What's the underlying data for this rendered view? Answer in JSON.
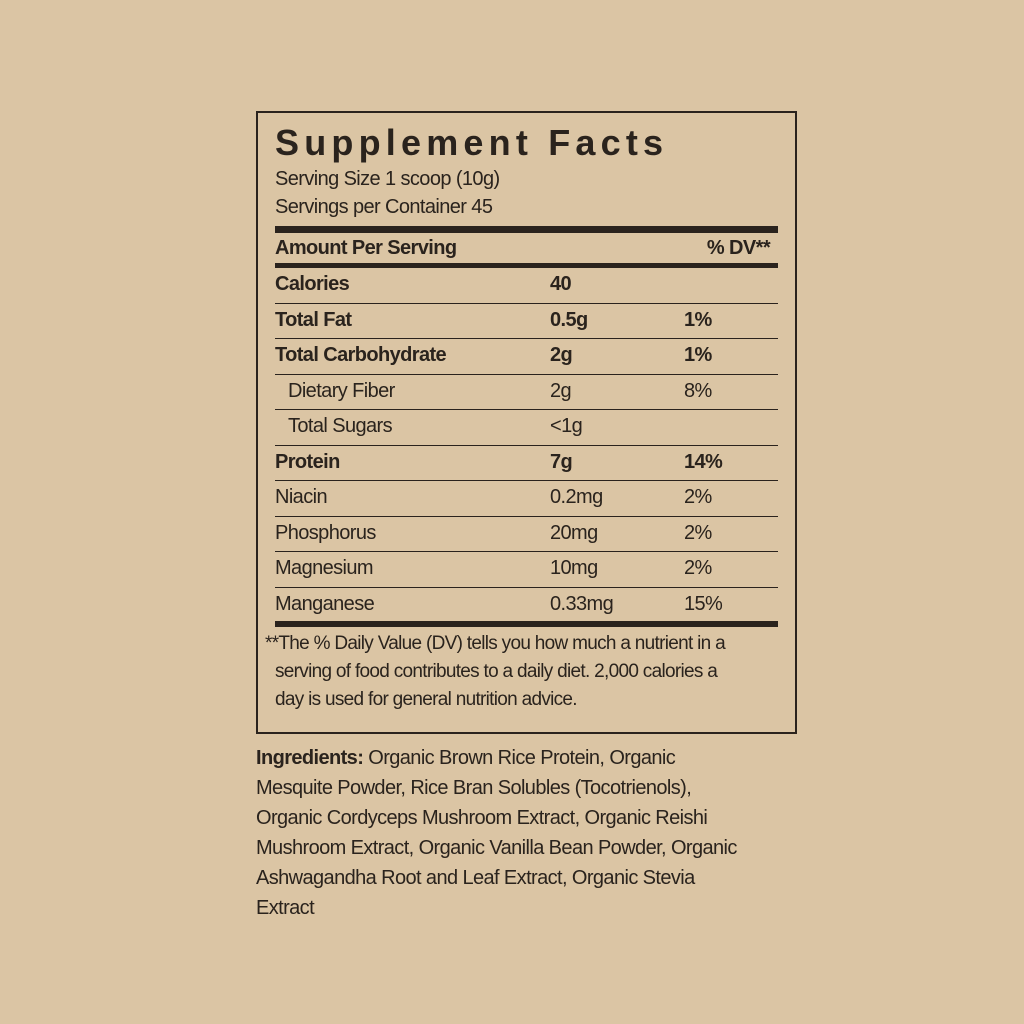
{
  "label": {
    "title": "Supplement Facts",
    "serving_size": "Serving Size 1 scoop (10g)",
    "servings_per_container": "Servings per Container 45",
    "header": {
      "left": "Amount Per Serving",
      "right": "% DV**"
    },
    "rows": [
      {
        "name": "Calories",
        "amount": "40",
        "bold": true
      },
      {
        "name": "Total Fat",
        "amount": "0.5g",
        "dv": "1%",
        "bold": true
      },
      {
        "name": "Total Carbohydrate",
        "amount": "2g",
        "dv": "1%",
        "bold": true
      },
      {
        "name": "Dietary Fiber",
        "amount": "2g",
        "dv": "8%",
        "indent": true
      },
      {
        "name": "Total Sugars",
        "amount": "<1g",
        "indent": true
      },
      {
        "name": "Protein",
        "amount": "7g",
        "dv": "14%",
        "bold": true
      },
      {
        "name": "Niacin",
        "amount": "0.2mg",
        "dv": "2%"
      },
      {
        "name": "Phosphorus",
        "amount": "20mg",
        "dv": "2%"
      },
      {
        "name": "Magnesium",
        "amount": "10mg",
        "dv": "2%"
      },
      {
        "name": "Manganese",
        "amount": "0.33mg",
        "dv": "15%"
      }
    ],
    "footnote": "**The % Daily Value (DV) tells you how much a nutrient in a serving of food contributes to a daily diet. 2,000 calories a day is used for general nutrition advice."
  },
  "ingredients": {
    "label": "Ingredients:",
    "text": "Organic Brown Rice Protein, Organic Mesquite Powder, Rice Bran Solubles (Tocotrienols), Organic Cordyceps Mushroom Extract, Organic Reishi Mushroom Extract, Organic Vanilla Bean Powder, Organic Ashwagandha Root and Leaf Extract, Organic Stevia Extract"
  }
}
